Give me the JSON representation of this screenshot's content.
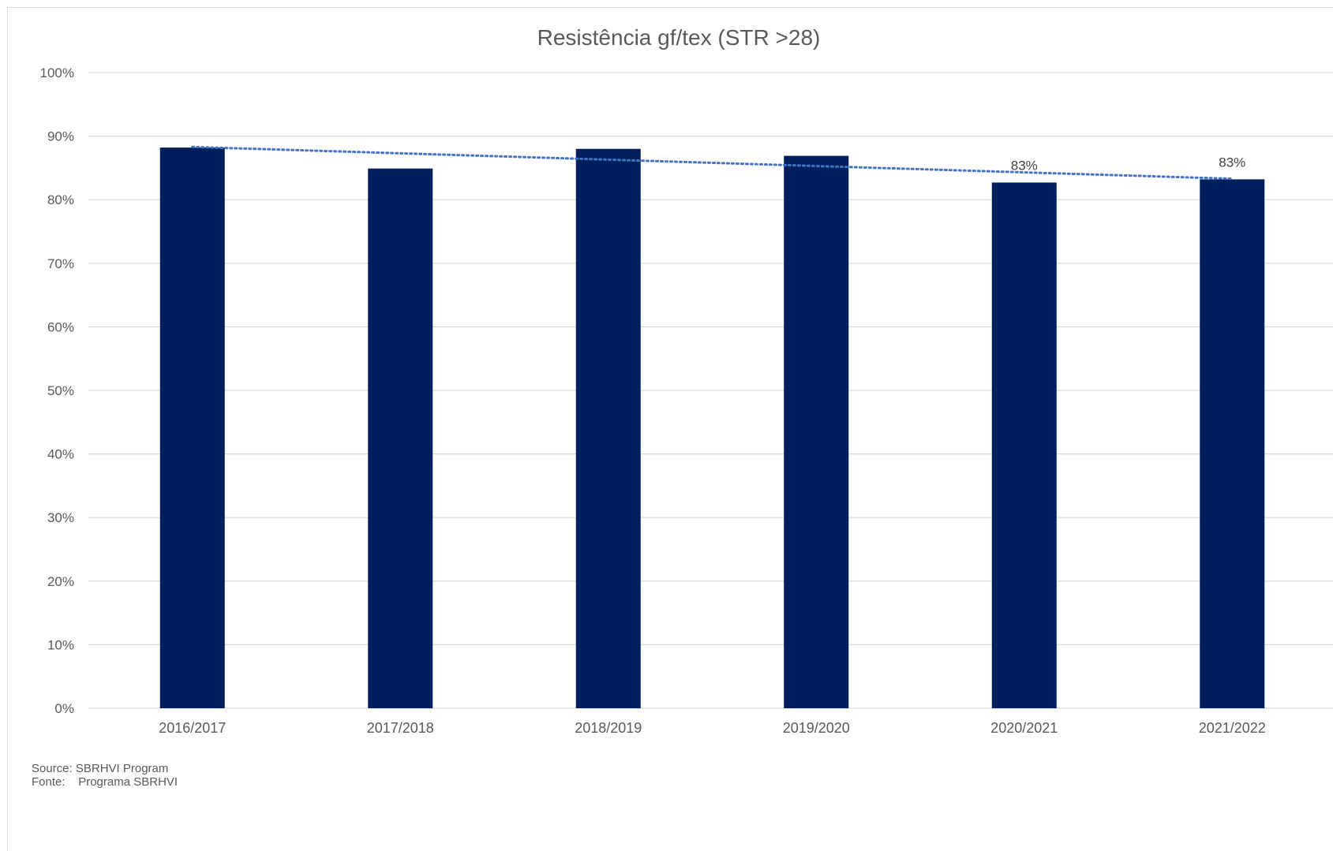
{
  "chart_data": {
    "type": "bar",
    "title": "Resistência gf/tex (STR >28)",
    "xlabel": "",
    "ylabel": "",
    "categories": [
      "2016/2017",
      "2017/2018",
      "2018/2019",
      "2019/2020",
      "2020/2021",
      "2021/2022"
    ],
    "values": [
      88.2,
      84.9,
      88.0,
      86.9,
      82.7,
      83.2
    ],
    "data_labels": [
      "",
      "",
      "",
      "",
      "83%",
      "83%"
    ],
    "ylim": [
      0,
      100
    ],
    "yticks": [
      "0%",
      "10%",
      "20%",
      "30%",
      "40%",
      "50%",
      "60%",
      "70%",
      "80%",
      "90%",
      "100%"
    ],
    "grid": true,
    "legend": "none",
    "trendline": {
      "type": "linear",
      "style": "dotted",
      "start": 88.3,
      "end": 83.3
    },
    "colors": {
      "bar": "#001f5c",
      "trendline": "#4472c4",
      "grid": "#d9d9d9",
      "text": "#595959"
    }
  },
  "footer": {
    "source_line": "Source: SBRHVI Program",
    "fonte_line": "Fonte:    Programa SBRHVI"
  }
}
